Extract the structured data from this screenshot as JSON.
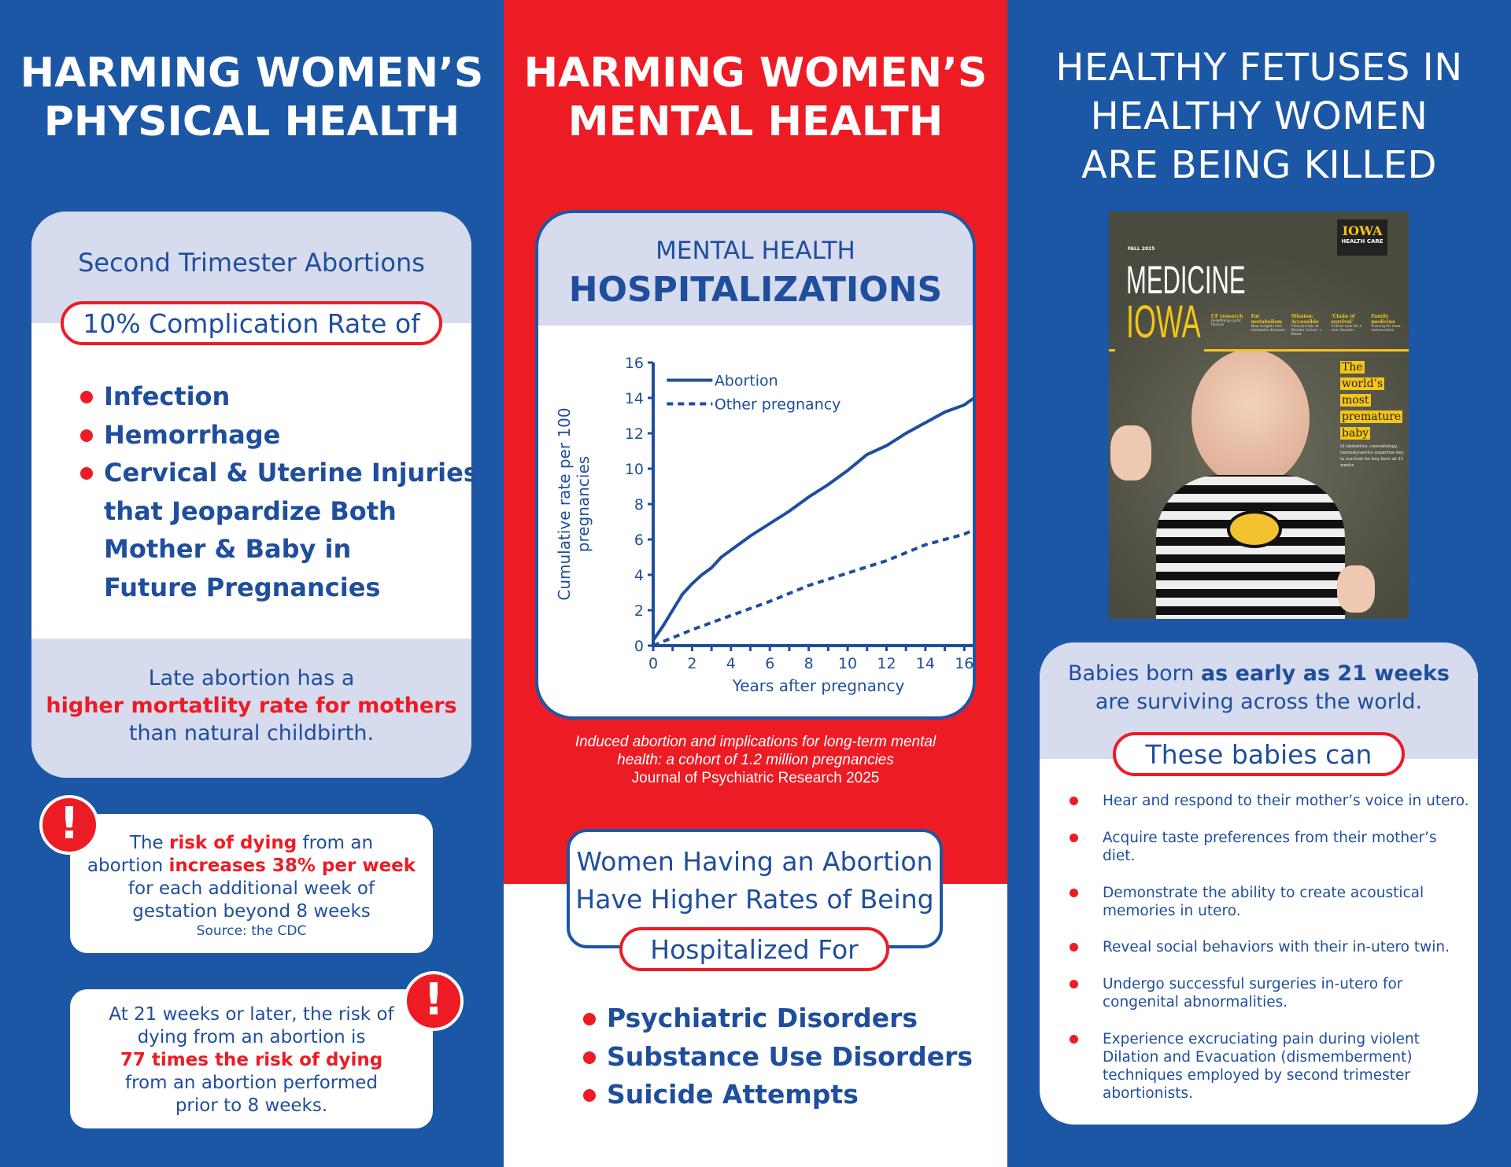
{
  "colors": {
    "blue": "#1c57a5",
    "red": "#ed1c24",
    "lavender": "#d6dbee",
    "text_blue": "#1f4e9c"
  },
  "left": {
    "title": [
      "HARMING WOMEN’S",
      "PHYSICAL HEALTH"
    ],
    "card_heading": "Second Trimester Abortions",
    "pill": "10% Complication Rate of",
    "bullets": [
      "Infection",
      "Hemorrhage",
      "Cervical & Uterine Injuries",
      "that Jeopardize Both",
      "Mother & Baby in",
      "Future Pregnancies"
    ],
    "late": {
      "line1": "Late abortion has a",
      "line2": "higher mortatlity rate for mothers",
      "line3": "than natural childbirth."
    },
    "alert1": {
      "a": "The ",
      "b": "risk of dying",
      "c": " from an",
      "d": "abortion ",
      "e": "increases 38% per week",
      "f": "for each additional week of",
      "g": "gestation beyond 8 weeks",
      "source": "Source: the CDC",
      "icon": "exclamation-icon"
    },
    "alert2": {
      "l1": "At 21 weeks or later, the risk of",
      "l2": "dying from an abortion is",
      "l3": "77 times the risk of dying",
      "l4": "from an abortion performed",
      "l5": "prior to 8 weeks.",
      "icon": "exclamation-icon"
    }
  },
  "middle": {
    "title": [
      "HARMING WOMEN’S",
      "MENTAL HEALTH"
    ],
    "card_sub": "MENTAL HEALTH",
    "card_title": "HOSPITALIZATIONS",
    "caption": {
      "l1": "Induced abortion and implications for long-term mental",
      "l2": "health: a cohort of 1.2 million pregnancies",
      "l3": "Journal of Psychiatric Research 2025"
    },
    "box": {
      "l1": "Women Having an Abortion",
      "l2": "Have Higher Rates of Being"
    },
    "pill": "Hospitalized For",
    "bullets": [
      "Psychiatric Disorders",
      "Substance Use Disorders",
      "Suicide Attempts"
    ]
  },
  "chart_data": {
    "type": "line",
    "xlabel": "Years after pregnancy",
    "ylabel": "Cumulative rate per 100 pregnancies",
    "ylabel_lines": [
      "Cumulative rate per 100",
      "pregnancies"
    ],
    "xlim": [
      0,
      17
    ],
    "ylim": [
      0,
      16
    ],
    "xticks": [
      0,
      2,
      4,
      6,
      8,
      10,
      12,
      14,
      16
    ],
    "yticks": [
      0,
      2,
      4,
      6,
      8,
      10,
      12,
      14,
      16
    ],
    "grid": false,
    "legend": "top-left",
    "series": [
      {
        "name": "Abortion",
        "style": "solid",
        "x": [
          0,
          0.5,
          1,
          1.5,
          2,
          2.5,
          3,
          3.5,
          4,
          4.5,
          5,
          6,
          7,
          8,
          9,
          10,
          11,
          12,
          13,
          14,
          15,
          16,
          17
        ],
        "y": [
          0.3,
          1.1,
          2,
          2.9,
          3.5,
          4,
          4.4,
          5,
          5.4,
          5.8,
          6.2,
          6.9,
          7.6,
          8.4,
          9.1,
          9.9,
          10.8,
          11.3,
          12,
          12.6,
          13.2,
          13.6,
          14.4
        ]
      },
      {
        "name": "Other pregnancy",
        "style": "dashed",
        "x": [
          0,
          2,
          4,
          6,
          8,
          10,
          12,
          14,
          16,
          17
        ],
        "y": [
          0,
          0.9,
          1.7,
          2.5,
          3.4,
          4.1,
          4.8,
          5.7,
          6.3,
          6.8
        ]
      }
    ]
  },
  "right": {
    "title": [
      "HEALTHY FETUSES IN",
      "HEALTHY WOMEN",
      "ARE BEING KILLED"
    ],
    "magazine": {
      "issue": "FALL 2025",
      "name1": "MEDICINE",
      "name2": "IOWA",
      "brand1": "IOWA",
      "brand2": "HEALTH CARE",
      "headline": [
        "The",
        "world’s",
        "most",
        "premature",
        "baby"
      ],
      "blurb": "UI obstetrics, neonatology, hemodynamics expertise key to survival for boy born at 21 weeks",
      "topics": [
        {
          "t": "CF research",
          "d": "Redefining cystic fibrosis"
        },
        {
          "t": "Fat metabolism",
          "d": "New insights into metabolic diseases"
        },
        {
          "t": "Mission: Accessible",
          "d": "Clinical trials at Mission Cancer + Blood"
        },
        {
          "t": "‘Chain of survival’",
          "d": "Critical care for a rare disorder"
        },
        {
          "t": "Family medicine",
          "d": "Training for Iowa communities"
        }
      ]
    },
    "card": {
      "l1a": "Babies born ",
      "l1b": "as early as 21 weeks",
      "l2": "are surviving across the world."
    },
    "pill": "These babies can",
    "items": [
      "Hear and respond to their mother’s voice in utero.",
      "Acquire taste preferences from their mother’s diet.",
      "Demonstrate the ability to create acoustical memories in utero.",
      "Reveal social behaviors with their in-utero twin.",
      "Undergo successful surgeries in-utero for congenital abnormalities.",
      "Experience excruciating pain during violent Dilation and Evacuation (dismemberment) techniques employed by second trimester abortionists."
    ]
  }
}
